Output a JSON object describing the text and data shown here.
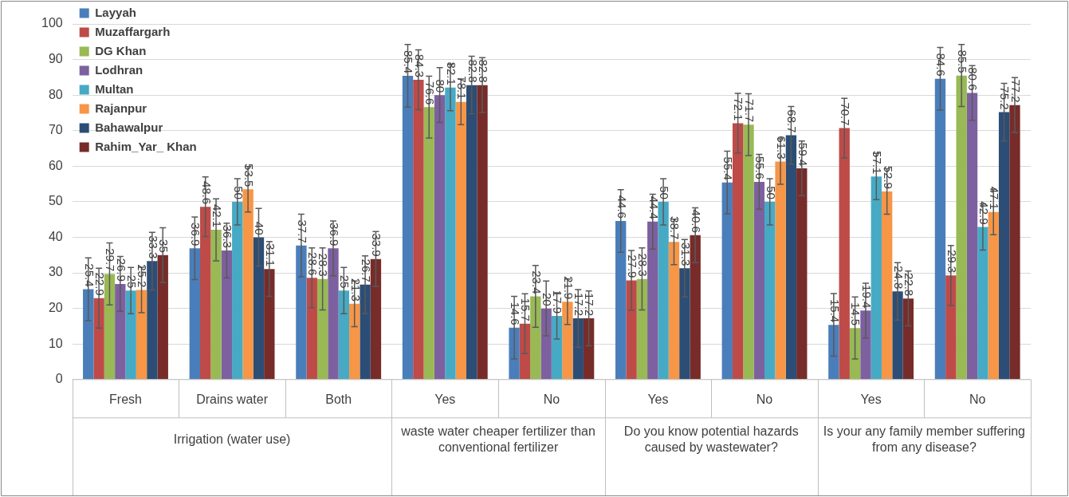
{
  "chart_data": {
    "type": "bar",
    "categories": [
      "Fresh",
      "Drains water",
      "Both",
      "Yes",
      "No",
      "Yes",
      "No",
      "Yes",
      "No"
    ],
    "annotations": [
      "Irrigation (water use)",
      "waste water cheaper fertilizer than conventional fertilizer",
      "Do you know potential hazards caused by wastewater?",
      "Is your any family member suffering from any disease?"
    ],
    "series": [
      {
        "name": "Layyah",
        "color": "#4a7ebb",
        "values": [
          25.4,
          36.9,
          37.7,
          85.4,
          14.6,
          44.6,
          55.4,
          15.4,
          84.6
        ],
        "errors": [
          8.8,
          8.8,
          8.8,
          8.8,
          8.8,
          8.8,
          8.8,
          8.8,
          8.8
        ]
      },
      {
        "name": "Muzaffargarh",
        "color": "#be4b48",
        "values": [
          22.9,
          48.6,
          28.6,
          84.3,
          15.7,
          27.9,
          72.1,
          70.7,
          29.3
        ],
        "errors": [
          8.4,
          8.4,
          8.4,
          8.4,
          8.4,
          8.4,
          8.4,
          8.4,
          8.4
        ]
      },
      {
        "name": "DG Khan",
        "color": "#98b954",
        "values": [
          29.7,
          42.1,
          28.3,
          76.6,
          23.4,
          28.3,
          71.7,
          14.5,
          85.5
        ],
        "errors": [
          8.7,
          8.7,
          8.7,
          8.7,
          8.7,
          8.7,
          8.7,
          8.7,
          8.7
        ]
      },
      {
        "name": "Lodhran",
        "color": "#7d60a0",
        "values": [
          26.9,
          36.3,
          36.9,
          80,
          20,
          44.4,
          55.6,
          19.4,
          80.6
        ],
        "errors": [
          7.7,
          7.7,
          7.7,
          7.7,
          7.7,
          7.7,
          7.7,
          7.7,
          7.7
        ]
      },
      {
        "name": "Multan",
        "color": "#46aac5",
        "values": [
          25,
          50,
          25,
          82.1,
          17.9,
          50,
          50,
          57.1,
          42.9
        ],
        "errors": [
          6.5,
          6.5,
          6.5,
          6.5,
          6.5,
          6.5,
          6.5,
          6.5,
          6.5
        ]
      },
      {
        "name": "Rajanpur",
        "color": "#f79646",
        "values": [
          25.2,
          53.5,
          21.3,
          78.1,
          21.9,
          38.7,
          61.3,
          52.9,
          47.1
        ],
        "errors": [
          6.4,
          6.4,
          6.4,
          6.4,
          6.4,
          6.4,
          6.4,
          6.4,
          6.4
        ]
      },
      {
        "name": "Bahawalpur",
        "color": "#2c4d75",
        "values": [
          33.3,
          40,
          26.7,
          82.8,
          17.2,
          31.3,
          68.7,
          24.8,
          75.2
        ],
        "errors": [
          8.1,
          8.1,
          8.1,
          8.1,
          8.1,
          8.1,
          8.1,
          8.1,
          8.1
        ]
      },
      {
        "name": "Rahim_Yar_ Khan",
        "color": "#772c2a",
        "values": [
          35,
          31.1,
          33.9,
          82.8,
          17.2,
          40.6,
          59.4,
          22.8,
          77.2
        ],
        "errors": [
          7.7,
          7.7,
          7.7,
          7.7,
          7.7,
          7.7,
          7.7,
          7.7,
          7.7
        ]
      }
    ],
    "ylim": [
      0,
      100
    ],
    "yticks": [
      0,
      10,
      20,
      30,
      40,
      50,
      60,
      70,
      80,
      90,
      100
    ],
    "grid": "y",
    "legend": "top left",
    "data_labels": true
  }
}
